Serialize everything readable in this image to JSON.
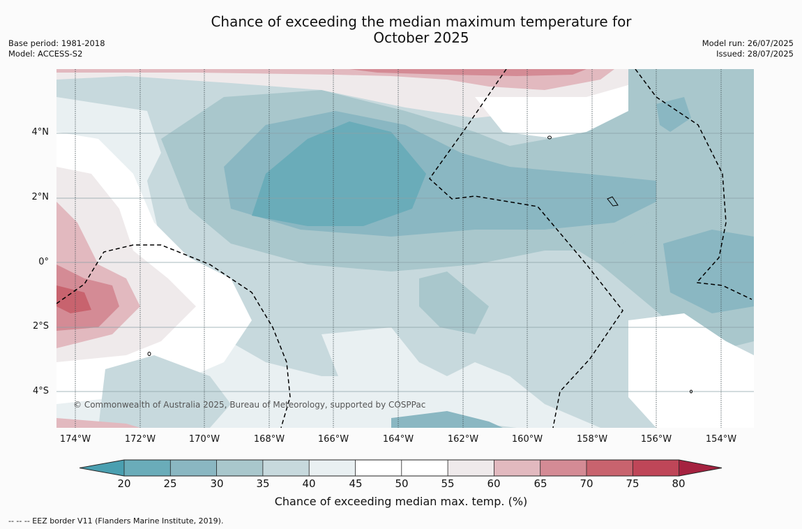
{
  "title_line1": "Chance of exceeding the median maximum temperature for",
  "title_line2": "October 2025",
  "left_meta": {
    "base_period": "Base period: 1981-2018",
    "model": "Model: ACCESS-S2"
  },
  "right_meta": {
    "model_run": "Model run: 26/07/2025",
    "issued": "Issued: 28/07/2025"
  },
  "map": {
    "lat_labels": [
      "4°N",
      "2°N",
      "0°",
      "2°S",
      "4°S"
    ],
    "lon_labels": [
      "174°W",
      "172°W",
      "170°W",
      "168°W",
      "166°W",
      "164°W",
      "162°W",
      "160°W",
      "158°W",
      "156°W",
      "154°W"
    ],
    "credit": "© Commonwealth of Australia 2025, Bureau of Meteorology, supported by COSPPac"
  },
  "colorbar": {
    "ticks": [
      "20",
      "25",
      "30",
      "35",
      "40",
      "45",
      "50",
      "55",
      "60",
      "65",
      "70",
      "75",
      "80"
    ],
    "colors": {
      "under": "#4a9fb0",
      "c20_25": "#6aacb9",
      "c25_30": "#8ab7c2",
      "c30_35": "#a9c7cc",
      "c35_40": "#c7d9dd",
      "c40_45": "#e9f0f2",
      "c45_50": "#ffffff",
      "c50_55": "#ffffff",
      "c55_60": "#efeaeb",
      "c60_65": "#e2b9bf",
      "c65_70": "#d48b95",
      "c70_75": "#c8636e",
      "c75_80": "#bf4658",
      "over": "#a52240"
    },
    "label": "Chance of exceeding median max. temp. (%)"
  },
  "footnote": "--  --  -- EEZ border V11 (Flanders Marine Institute, 2019)."
}
